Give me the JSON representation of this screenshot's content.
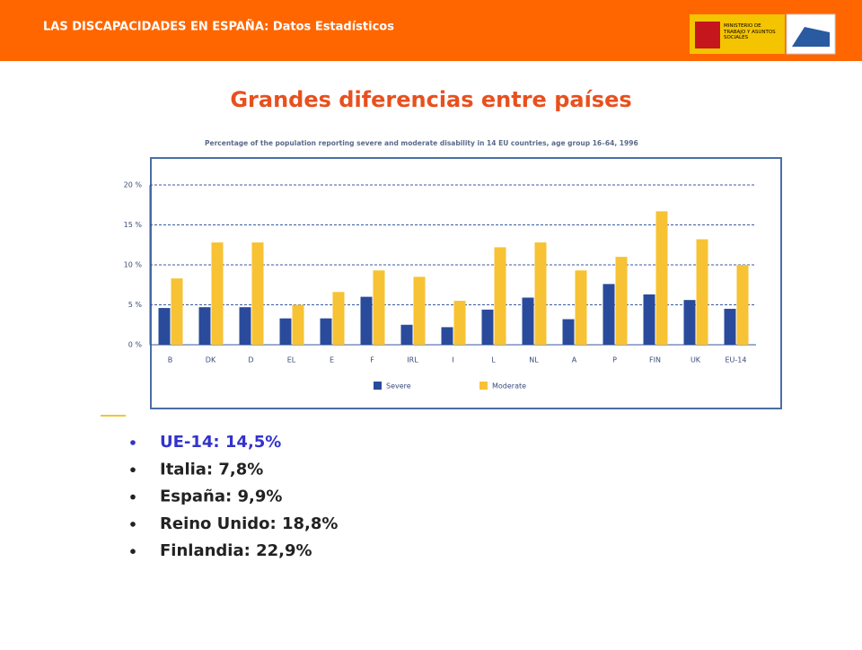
{
  "header": {
    "title": "LAS DISCAPACIDADES EN ESPAÑA: Datos Estadísticos",
    "logo_text": "MINISTERIO DE TRABAJO Y ASUNTOS SOCIALES"
  },
  "slide_title": "Grandes diferencias entre países",
  "chart_data": {
    "type": "bar",
    "title": "Percentage of the population reporting severe and moderate disability in 14 EU countries, age group 16–64, 1996",
    "categories": [
      "B",
      "DK",
      "D",
      "EL",
      "E",
      "F",
      "IRL",
      "I",
      "L",
      "NL",
      "A",
      "P",
      "FIN",
      "UK",
      "EU-14"
    ],
    "series": [
      {
        "name": "Severe",
        "color": "#2a4b9b",
        "values": [
          4.6,
          4.7,
          4.7,
          3.3,
          3.3,
          6.0,
          2.5,
          2.2,
          4.4,
          5.9,
          3.2,
          7.6,
          6.3,
          5.6,
          4.5
        ]
      },
      {
        "name": "Moderate",
        "color": "#f7c233",
        "values": [
          8.3,
          12.8,
          12.8,
          5.0,
          6.6,
          9.3,
          8.5,
          5.5,
          12.2,
          12.8,
          9.3,
          11.0,
          16.7,
          13.2,
          10.0
        ]
      }
    ],
    "ylim": [
      0,
      20
    ],
    "yticks": [
      {
        "value": 0,
        "label": "0 %"
      },
      {
        "value": 5,
        "label": "5 %"
      },
      {
        "value": 10,
        "label": "10 %"
      },
      {
        "value": 15,
        "label": "15 %"
      },
      {
        "value": 20,
        "label": "20 %"
      }
    ],
    "grid": true,
    "legend": "bottom"
  },
  "bullets": [
    "UE-14:  14,5%",
    "Italia: 7,8%",
    "España: 9,9%",
    "Reino Unido: 18,8%",
    "Finlandia: 22,9%"
  ]
}
